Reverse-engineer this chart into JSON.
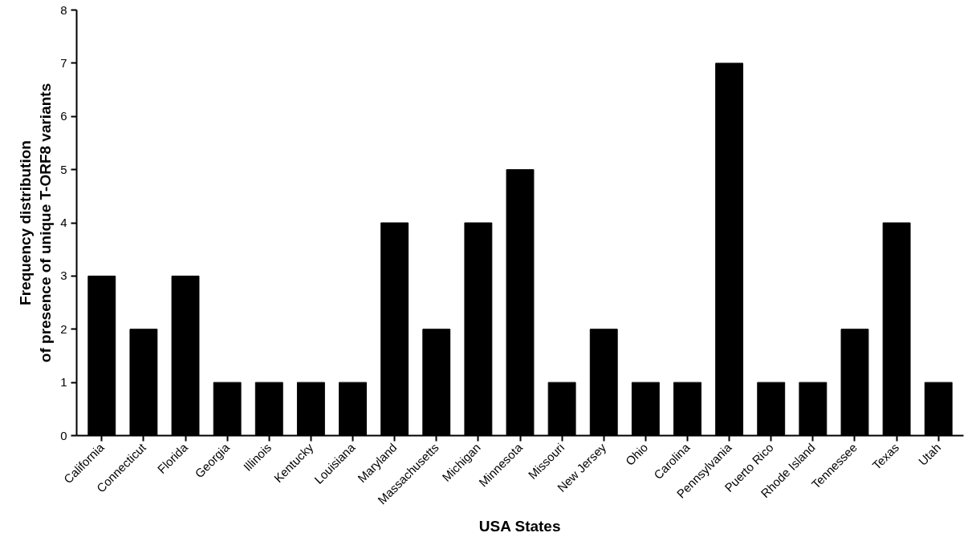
{
  "chart_data": {
    "type": "bar",
    "xlabel": "USA States",
    "ylabel": "Frequency distribution\nof presence of unique T-ORF8 variants",
    "categories": [
      "California",
      "Connecticut",
      "Florida",
      "Georgia",
      "Illinois",
      "Kentucky",
      "Louisiana",
      "Maryland",
      "Massachusetts",
      "Michigan",
      "Minnesota",
      "Missouri",
      "New Jersey",
      "Ohio",
      "Carolina",
      "Pennsylvania",
      "Puerto Rico",
      "Rhode Island",
      "Tennessee",
      "Texas",
      "Utah"
    ],
    "values": [
      3,
      2,
      3,
      1,
      1,
      1,
      1,
      4,
      2,
      4,
      5,
      1,
      2,
      1,
      1,
      7,
      1,
      1,
      2,
      4,
      1
    ],
    "color": "#000000",
    "ylim": [
      0,
      8
    ],
    "yticks": [
      0,
      1,
      2,
      3,
      4,
      5,
      6,
      7,
      8
    ],
    "grid": false
  }
}
